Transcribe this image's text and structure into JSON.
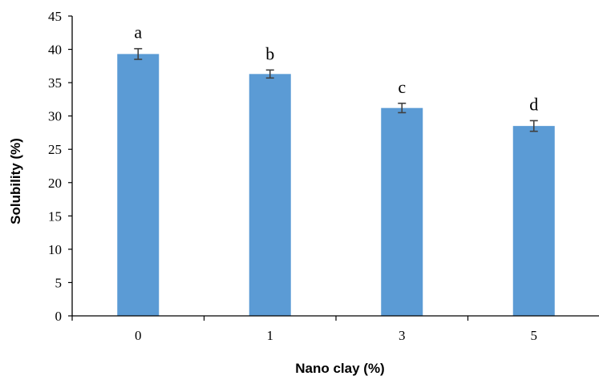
{
  "chart_data": {
    "type": "bar",
    "categories": [
      "0",
      "1",
      "3",
      "5"
    ],
    "values": [
      39.3,
      36.3,
      31.2,
      28.5
    ],
    "errors": [
      0.8,
      0.6,
      0.7,
      0.8
    ],
    "significance_labels": [
      "a",
      "b",
      "c",
      "d"
    ],
    "xlabel": "Nano clay (%)",
    "ylabel": "Solubility (%)",
    "ylim": [
      0,
      45
    ],
    "yticks": [
      "0",
      "5",
      "10",
      "15",
      "20",
      "25",
      "30",
      "35",
      "40",
      "45"
    ],
    "grid": false,
    "legend": "none",
    "colors": {
      "bar": "#5b9bd5",
      "error_bar": "#404040",
      "axis": "#000000"
    }
  }
}
